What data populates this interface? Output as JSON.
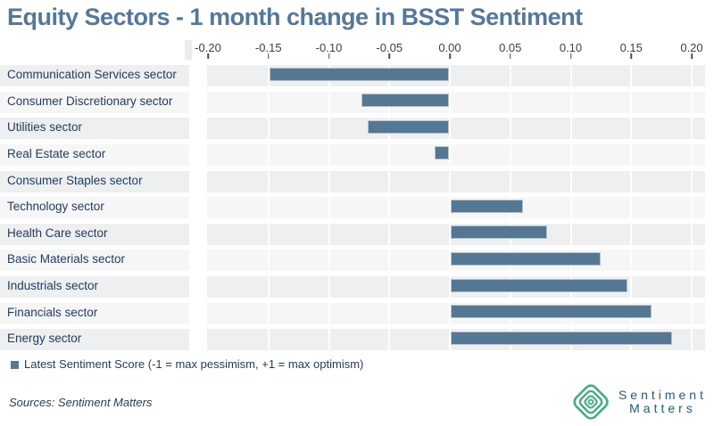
{
  "title": "Equity Sectors - 1 month change in BSST Sentiment",
  "chart_data": {
    "type": "bar",
    "orientation": "horizontal",
    "title": "Equity Sectors - 1 month change in BSST Sentiment",
    "categories": [
      "Communication Services sector",
      "Consumer Discretionary sector",
      "Utilities sector",
      "Real Estate sector",
      "Consumer Staples sector",
      "Technology sector",
      "Health Care sector",
      "Basic Materials sector",
      "Industrials sector",
      "Financials sector",
      "Energy sector"
    ],
    "values": [
      -0.148,
      -0.072,
      -0.067,
      -0.012,
      0,
      0.06,
      0.08,
      0.124,
      0.146,
      0.166,
      0.183
    ],
    "series_name": "Latest Sentiment Score",
    "xlim": [
      -0.2,
      0.2
    ],
    "x_ticks": [
      -0.2,
      -0.15,
      -0.1,
      -0.05,
      0.0,
      0.05,
      0.1,
      0.15,
      0.2
    ],
    "x_tick_labels": [
      "-0.20",
      "-0.15",
      "-0.10",
      "-0.05",
      "0.00",
      "0.05",
      "0.10",
      "0.15",
      "0.20"
    ],
    "xlabel": "",
    "ylabel": "",
    "grid": true,
    "legend_position": "bottom",
    "bar_color": "#567794"
  },
  "legend": {
    "label": "Latest Sentiment Score (-1 = max pessimism, +1 = max optimism)",
    "marker_color": "#567794"
  },
  "footer": {
    "sources": "Sources: Sentiment Matters"
  },
  "logo": {
    "icon": "concentric-diamonds-icon",
    "icon_color": "#43ad7d",
    "line1": "Sentiment",
    "line2": "Matters",
    "text_color": "#1e6073"
  },
  "colors": {
    "title": "#54789b",
    "bar": "#567794",
    "bar_border": "#b7c2cd",
    "row_band_dark": "#edeff1",
    "row_band_light": "#f6f6f7",
    "label_text": "#1f3a5f",
    "axis_text": "#3f3f3f"
  }
}
